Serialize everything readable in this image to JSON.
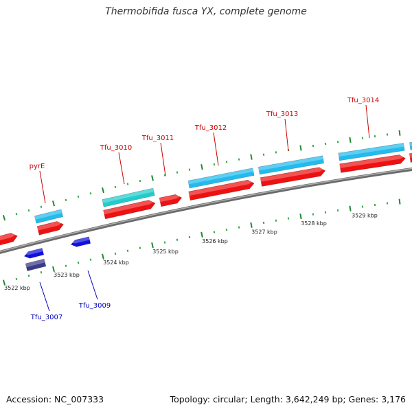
{
  "title": "Thermobifida fusca YX, complete genome",
  "footer": {
    "accession": "Accession: NC_007333",
    "summary": "Topology: circular; Length: 3,642,249 bp; Genes: 3,176"
  },
  "colors": {
    "backbone": "#888888",
    "forward_cds": "#ee1111",
    "forward_gene": "#22bbee",
    "reverse_cds": "#1111dd",
    "reverse_gene": "#3a3a88",
    "trna": "#22cccc",
    "tick_major": "#228833",
    "label_forward": "#cc0000",
    "label_reverse": "#0000bb"
  },
  "scale": {
    "labels": [
      "3522 kbp",
      "3523 kbp",
      "3524 kbp",
      "3525 kbp",
      "3526 kbp",
      "3527 kbp",
      "3528 kbp",
      "3529 kbp"
    ]
  },
  "genes": [
    {
      "name": "pyrE",
      "strand": "forward"
    },
    {
      "name": "Tfu_3010",
      "strand": "forward"
    },
    {
      "name": "Tfu_3011",
      "strand": "forward"
    },
    {
      "name": "Tfu_3012",
      "strand": "forward"
    },
    {
      "name": "Tfu_3013",
      "strand": "forward"
    },
    {
      "name": "Tfu_3014",
      "strand": "forward"
    },
    {
      "name": "Tfu_3007",
      "strand": "reverse"
    },
    {
      "name": "Tfu_3009",
      "strand": "reverse"
    }
  ]
}
